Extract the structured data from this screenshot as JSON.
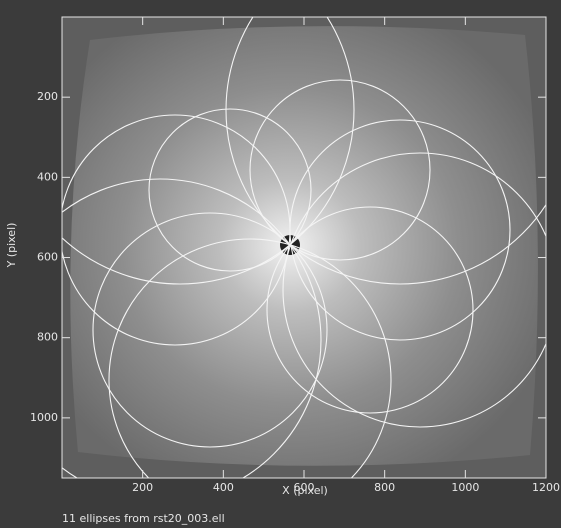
{
  "chart_data": {
    "type": "image",
    "xlabel": "X (pixel)",
    "ylabel": "Y (pixel)",
    "caption": "11 ellipses from rst20_003.ell",
    "xlim": [
      0,
      1200
    ],
    "ylim": [
      1150,
      0
    ],
    "xticks": [
      200,
      400,
      600,
      800,
      1000,
      1200
    ],
    "yticks": [
      200,
      400,
      600,
      800,
      1000
    ]
  }
}
